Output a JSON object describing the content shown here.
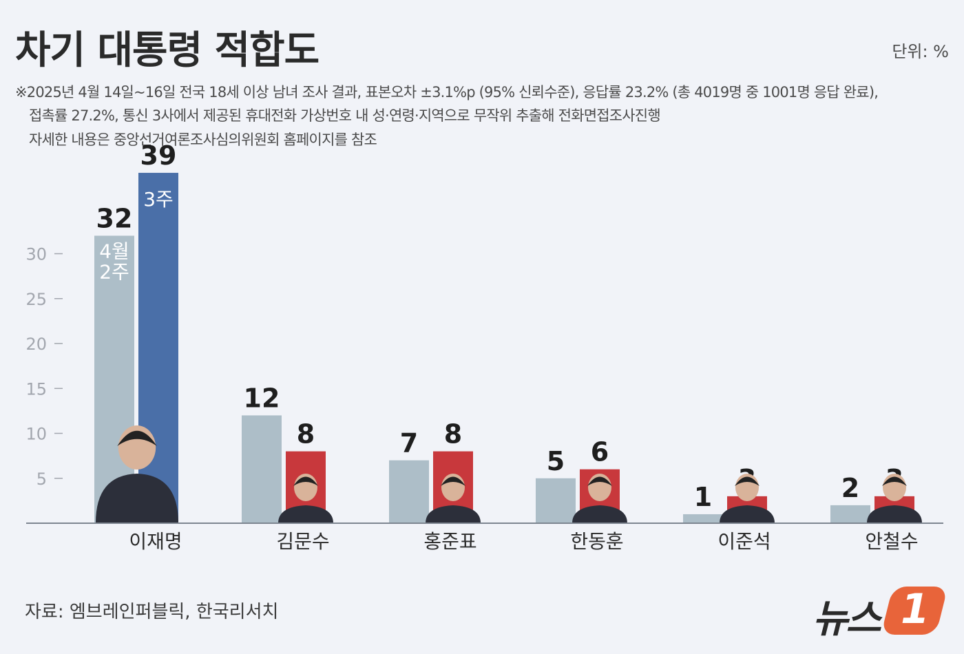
{
  "header": {
    "title": "차기 대통령 적합도",
    "unit": "단위: %"
  },
  "notes": [
    "※2025년 4월 14일~16일 전국 18세 이상 남녀 조사 결과, 표본오차 ±3.1%p (95% 신뢰수준), 응답률 23.2% (총 4019명 중 1001명 응답 완료),",
    "접촉률 27.2%, 통신 3사에서 제공된 휴대전화 가상번호 내 성·연령·지역으로 무작위 추출해 전화면접조사진행",
    "자세한 내용은 중앙선거여론조사심의위원회 홈페이지를 참조"
  ],
  "source": "자료: 엠브레인퍼블릭, 한국리서치",
  "logo": {
    "text": "뉴스",
    "badge": "1"
  },
  "colors": {
    "prev": "#adbec8",
    "cur_lead": "#4a6fa8",
    "cur_other": "#c8383c",
    "axis": "#7d8590"
  },
  "chart_data": {
    "type": "bar",
    "categories": [
      "이재명",
      "김문수",
      "홍준표",
      "한동훈",
      "이준석",
      "안철수"
    ],
    "series": [
      {
        "name": "4월 2주",
        "values": [
          32,
          12,
          7,
          5,
          1,
          2
        ]
      },
      {
        "name": "3주",
        "values": [
          39,
          8,
          8,
          6,
          3,
          3
        ]
      }
    ],
    "yticks": [
      5,
      10,
      15,
      20,
      25,
      30
    ],
    "ylim": [
      0,
      40
    ],
    "in_bar_labels": {
      "prev": [
        "4월",
        "2주"
      ],
      "cur": "3주"
    }
  }
}
